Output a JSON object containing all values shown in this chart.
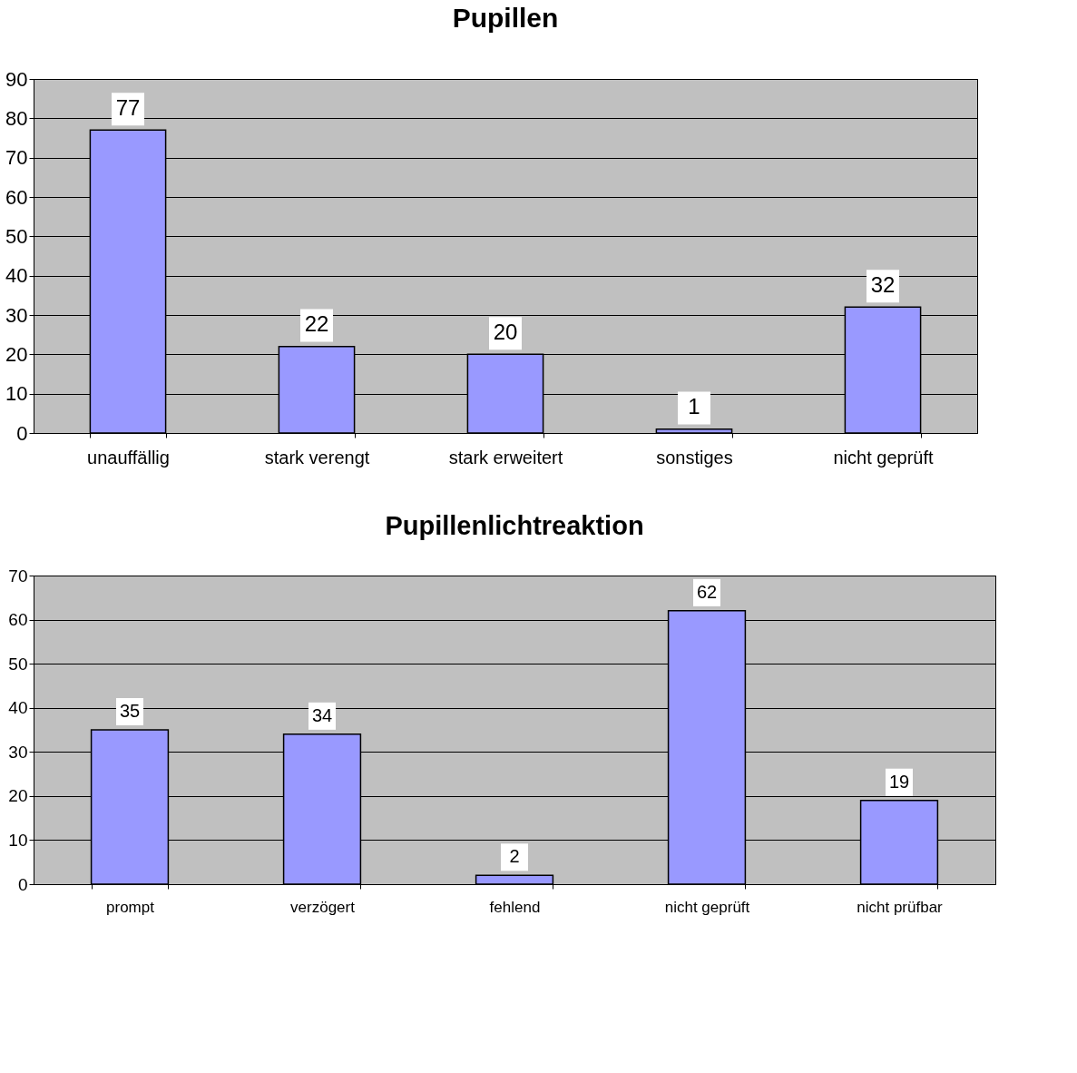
{
  "chart_data": [
    {
      "type": "bar",
      "title": "Pupillen",
      "categories": [
        "unauffällig",
        "stark verengt",
        "stark erweitert",
        "sonstiges",
        "nicht geprüft"
      ],
      "values": [
        77,
        22,
        20,
        1,
        32
      ],
      "color": "#9999ff",
      "ylim": [
        0,
        90
      ],
      "yticks": [
        0,
        10,
        20,
        30,
        40,
        50,
        60,
        70,
        80,
        90
      ],
      "grid": "y",
      "data_labels": true
    },
    {
      "type": "bar",
      "title": "Pupillenlichtreaktion",
      "categories": [
        "prompt",
        "verzögert",
        "fehlend",
        "nicht geprüft",
        "nicht prüfbar"
      ],
      "values": [
        35,
        34,
        2,
        62,
        19
      ],
      "color": "#9999ff",
      "ylim": [
        0,
        70
      ],
      "yticks": [
        0,
        10,
        20,
        30,
        40,
        50,
        60,
        70
      ],
      "grid": "y",
      "data_labels": true
    }
  ]
}
